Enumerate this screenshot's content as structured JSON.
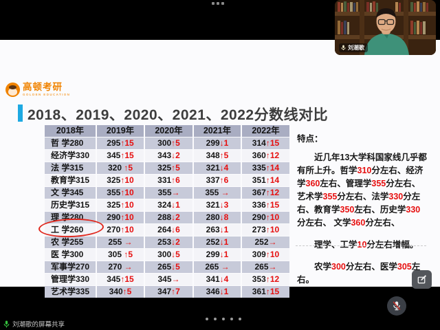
{
  "meeting": {
    "presenter_name": "刘潮歌",
    "share_status": "刘潮歌的屏幕共享",
    "icons": {
      "webcam_label_mic": "mic-icon",
      "bottom_control": "mic-muted-icon",
      "share_status": "mic-green-icon",
      "slide_corner": "annotate-pen-icon",
      "top_bar": "toolbar-dots-icon"
    }
  },
  "slide": {
    "logo": {
      "brand": "高顿考研",
      "sub": "GOLDEN EDUCATION"
    },
    "title": "2018、2019、2020、2021、2022分数线对比",
    "table": {
      "headers": [
        "2018年",
        "2019年",
        "2020年",
        "2021年",
        "2022年"
      ],
      "rows": [
        [
          "哲 学280",
          "295↑15",
          "300↑5",
          "299↓1",
          "314↑15"
        ],
        [
          "经济学330",
          "345↑15",
          "343↓2",
          "348↑5",
          "360↑12"
        ],
        [
          "法 学315",
          "320 ↑5",
          "325↑5",
          "321↓4",
          "335↑14"
        ],
        [
          "教育学315",
          "325↑10",
          "331↑6",
          "337↑6",
          "351↑14"
        ],
        [
          "文 学345",
          "355↑10",
          "355→",
          "355 →",
          "367↑12"
        ],
        [
          "历史学315",
          "325↑10",
          "324↓1",
          "321↓3",
          "336↑15"
        ],
        [
          "理 学280",
          "290↑10",
          "288↓2",
          "280↓8",
          "290↑10"
        ],
        [
          "工 学260",
          "270↑10",
          "264↓6",
          "263↓1",
          "273↑10"
        ],
        [
          "农 学255",
          "255 →",
          "253↓2",
          "252↓1",
          "252→"
        ],
        [
          "医 学300",
          "305 ↑5",
          "300↓5",
          "299↓1",
          "309↑10"
        ],
        [
          "军事学270",
          "270 →",
          "265↓5",
          "265 →",
          "265→"
        ],
        [
          "管理学330",
          "345↑15",
          "345→",
          "341↓4",
          "353↑12"
        ],
        [
          "艺术学335",
          "340↑5",
          "347↑7",
          "346↓1",
          "361↑15"
        ]
      ],
      "circled_cell": "工 学260"
    },
    "notes": {
      "heading": "特点：",
      "paragraphs": [
        [
          {
            "t": "近几年13大学科国家线几乎都有所上升。哲学"
          },
          {
            "t": "310",
            "r": 1
          },
          {
            "t": "分左右、经济学"
          },
          {
            "t": "360",
            "r": 1
          },
          {
            "t": "左右、管理学"
          },
          {
            "t": "355",
            "r": 1
          },
          {
            "t": "分左右、艺术学"
          },
          {
            "t": "355",
            "r": 1
          },
          {
            "t": "分左右、法学"
          },
          {
            "t": "330",
            "r": 1
          },
          {
            "t": "分左右、教育学"
          },
          {
            "t": "350",
            "r": 1
          },
          {
            "t": "左右、历史学"
          },
          {
            "t": "330",
            "r": 1
          },
          {
            "t": "分左右、 文学"
          },
          {
            "t": "360",
            "r": 1
          },
          {
            "t": "分左右、"
          }
        ],
        [
          {
            "t": "理学、工学"
          },
          {
            "t": "10",
            "r": 1
          },
          {
            "t": "分左右增幅。"
          }
        ],
        [
          {
            "t": "农学"
          },
          {
            "t": "300",
            "r": 1
          },
          {
            "t": "分左右、医学"
          },
          {
            "t": "305",
            "r": 1
          },
          {
            "t": "左右。"
          }
        ]
      ]
    }
  },
  "colors": {
    "accent_blue": "#1ea9e2",
    "brand_orange": "#f08300",
    "delta_red": "#e60f0f",
    "table_header_bg": "#a9adc2",
    "row_odd_bg": "#c7cad9",
    "row_even_bg": "#f4f4f8",
    "mute_red": "#d23b35",
    "share_mic_green": "#35c03e"
  }
}
